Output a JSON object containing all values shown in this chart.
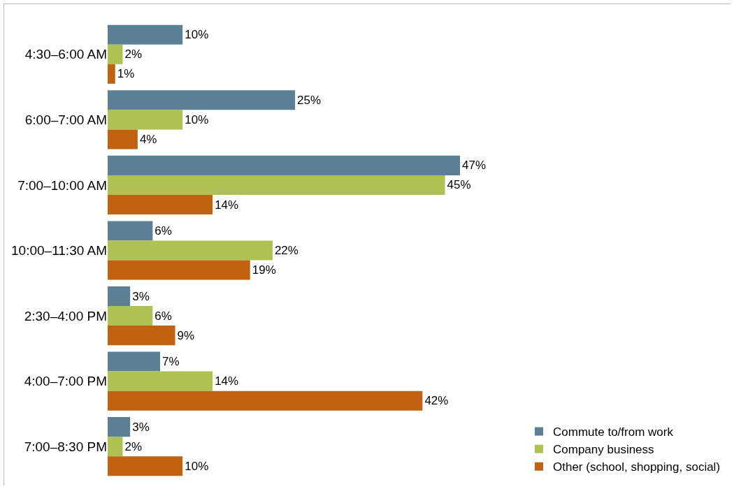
{
  "chart_data": {
    "type": "bar",
    "orientation": "horizontal",
    "categories": [
      "4:30–6:00 AM",
      "6:00–7:00 AM",
      "7:00–10:00 AM",
      "10:00–11:30 AM",
      "2:30–4:00 PM",
      "4:00–7:00 PM",
      "7:00–8:30 PM"
    ],
    "series": [
      {
        "name": "Commute to/from work",
        "color": "#5b7f95",
        "values": [
          10,
          25,
          47,
          6,
          3,
          7,
          3
        ],
        "value_labels": [
          "10%",
          "25%",
          "47%",
          "6%",
          "3%",
          "7%",
          "3%"
        ]
      },
      {
        "name": "Company business",
        "color": "#afc152",
        "values": [
          2,
          10,
          45,
          22,
          6,
          14,
          2
        ],
        "value_labels": [
          "2%",
          "10%",
          "45%",
          "22%",
          "6%",
          "14%",
          "2%"
        ]
      },
      {
        "name": "Other (school, shopping, social)",
        "color": "#c0620f",
        "values": [
          1,
          4,
          14,
          19,
          9,
          42,
          10
        ],
        "value_labels": [
          "1%",
          "4%",
          "14%",
          "19%",
          "9%",
          "42%",
          "10%"
        ]
      }
    ],
    "legend": "bottom right",
    "grid": false
  }
}
